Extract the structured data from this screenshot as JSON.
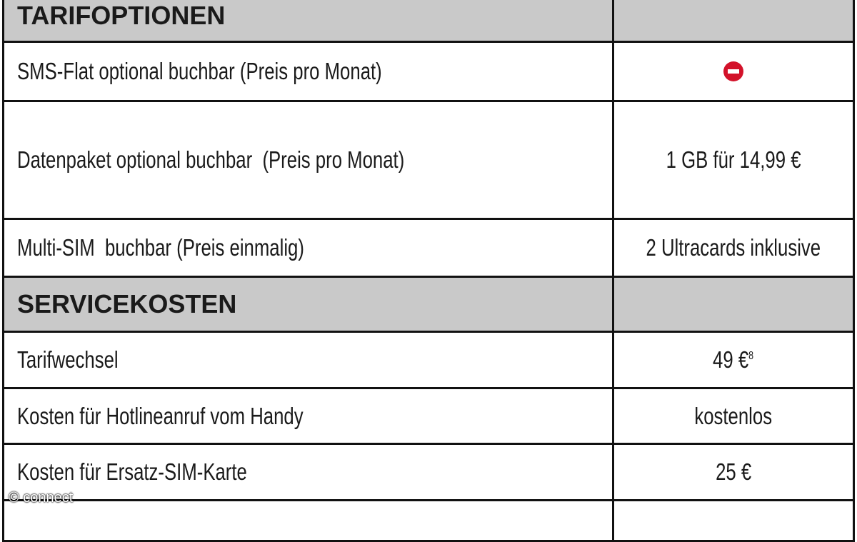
{
  "sections": [
    {
      "title": "TARIFOPTIONEN",
      "rows": [
        {
          "label": "SMS-Flat optional buchbar (Preis pro Monat)"
        },
        {
          "label": "Datenpaket optional buchbar  (Preis pro Monat)",
          "value": "1 GB für 14,99 €"
        },
        {
          "label": "Multi-SIM  buchbar (Preis einmalig)",
          "value": "2 Ultracards inklusive"
        }
      ]
    },
    {
      "title": "SERVICEKOSTEN",
      "rows": [
        {
          "label": "Tarifwechsel",
          "value": "49 €",
          "note": "8"
        },
        {
          "label": "Kosten für Hotlineanruf vom Handy",
          "value": "kostenlos"
        },
        {
          "label": "Kosten für Ersatz-SIM-Karte",
          "value": "25 €"
        }
      ]
    }
  ],
  "watermark": "© connect"
}
